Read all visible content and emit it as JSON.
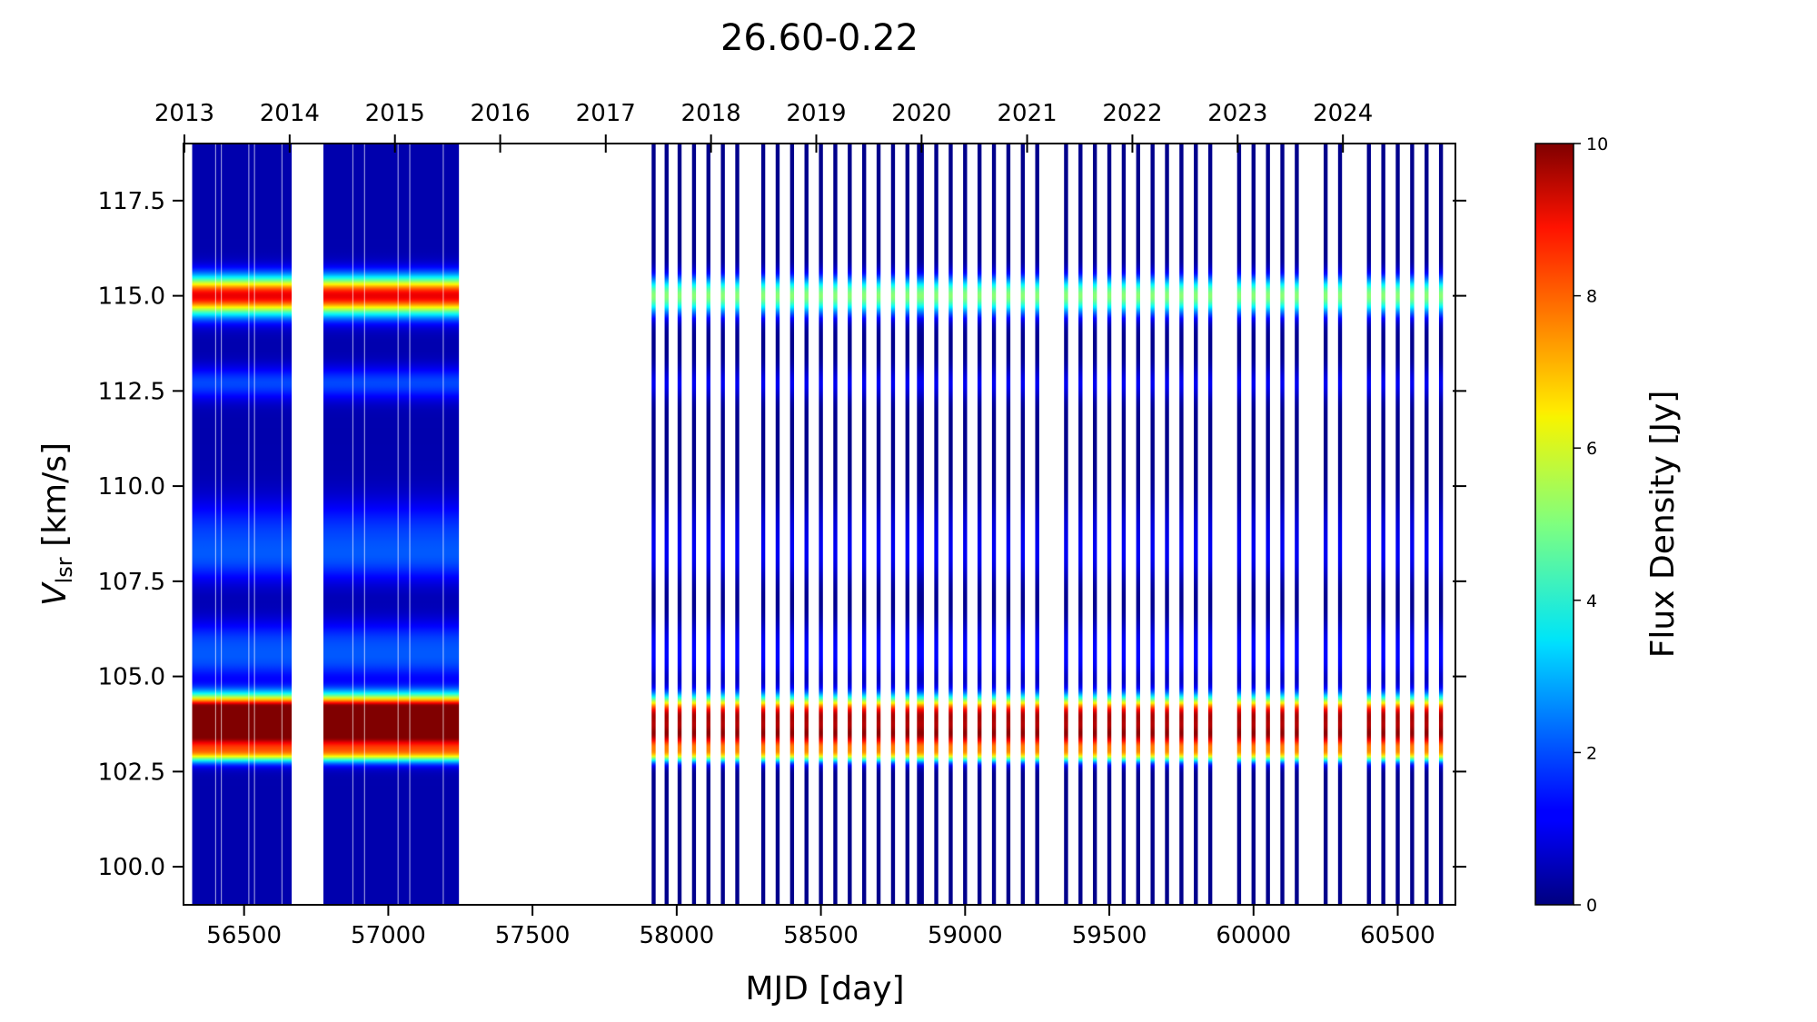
{
  "chart_data": {
    "type": "heatmap",
    "title": "26.60-0.22",
    "xlabel": "MJD [day]",
    "ylabel_main": "V",
    "ylabel_sub": "lsr",
    "ylabel_unit": " [km/s]",
    "xlim": [
      56290,
      60700
    ],
    "ylim": [
      99.0,
      119.0
    ],
    "x_ticks": [
      56500,
      57000,
      57500,
      58000,
      58500,
      59000,
      59500,
      60000,
      60500
    ],
    "y_ticks": [
      100.0,
      102.5,
      105.0,
      107.5,
      110.0,
      112.5,
      115.0,
      117.5
    ],
    "y_tick_labels": [
      "100.0",
      "102.5",
      "105.0",
      "107.5",
      "110.0",
      "112.5",
      "115.0",
      "117.5"
    ],
    "top_axis": {
      "label_years": [
        "2013",
        "2014",
        "2015",
        "2016",
        "2017",
        "2018",
        "2019",
        "2020",
        "2021",
        "2022",
        "2023",
        "2024"
      ],
      "year_mjd": [
        56293,
        56658,
        57023,
        57388,
        57754,
        58119,
        58484,
        58849,
        59215,
        59580,
        59945,
        60310
      ]
    },
    "colorbar": {
      "label": "Flux Density [Jy]",
      "min": 0,
      "max": 10,
      "ticks": [
        0,
        2,
        4,
        6,
        8,
        10
      ],
      "colormap": "jet"
    },
    "dense_segments": [
      {
        "start": 56320,
        "end": 56665
      },
      {
        "start": 56775,
        "end": 57245
      }
    ],
    "observation_epochs_mjd": [
      57920,
      57965,
      58010,
      58060,
      58110,
      58160,
      58210,
      58300,
      58350,
      58400,
      58450,
      58500,
      58550,
      58600,
      58650,
      58700,
      58750,
      58800,
      58840,
      58850,
      58900,
      58950,
      59000,
      59050,
      59100,
      59150,
      59200,
      59250,
      59350,
      59400,
      59450,
      59500,
      59550,
      59600,
      59650,
      59700,
      59750,
      59800,
      59850,
      59950,
      60000,
      60050,
      60100,
      60150,
      60250,
      60300,
      60400,
      60450,
      60500,
      60550,
      60600,
      60650
    ],
    "spectral_features": [
      {
        "velocity": 115.0,
        "width": 0.35,
        "peak_dense": 8.5,
        "peak_sparse": 5.0
      },
      {
        "velocity": 112.7,
        "width": 0.3,
        "peak_dense": 1.5,
        "peak_sparse": 1.0
      },
      {
        "velocity": 108.8,
        "width": 0.6,
        "peak_dense": 1.3,
        "peak_sparse": 0.8
      },
      {
        "velocity": 108.0,
        "width": 0.4,
        "peak_dense": 1.0,
        "peak_sparse": 0.6
      },
      {
        "velocity": 105.9,
        "width": 0.4,
        "peak_dense": 1.4,
        "peak_sparse": 1.0
      },
      {
        "velocity": 105.3,
        "width": 0.3,
        "peak_dense": 1.0,
        "peak_sparse": 0.7
      },
      {
        "velocity": 104.15,
        "width": 0.3,
        "peak_dense": 7.5,
        "peak_sparse": 5.5
      },
      {
        "velocity": 103.8,
        "width": 0.3,
        "peak_dense": 7.0,
        "peak_sparse": 5.5
      },
      {
        "velocity": 103.45,
        "width": 0.2,
        "peak_dense": 4.0,
        "peak_sparse": 4.5
      },
      {
        "velocity": 103.15,
        "width": 0.25,
        "peak_dense": 4.5,
        "peak_sparse": 4.0
      },
      {
        "velocity": 102.95,
        "width": 0.15,
        "peak_dense": 3.0,
        "peak_sparse": 3.5
      }
    ]
  }
}
